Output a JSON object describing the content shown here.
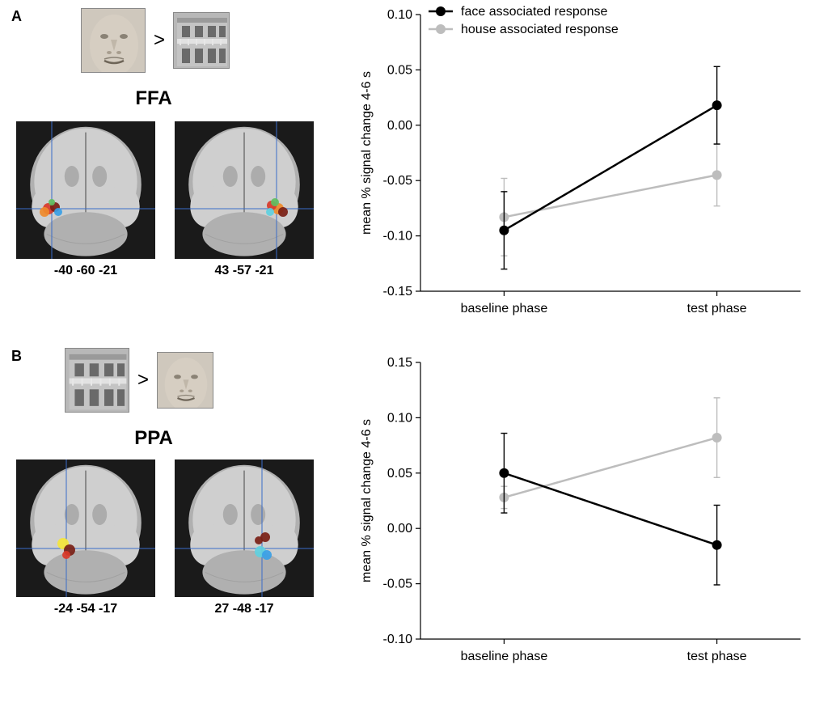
{
  "labels": {
    "panelA": "A",
    "panelB": "B",
    "ffa": "FFA",
    "ppa": "PPA",
    "gt": ">"
  },
  "coords": {
    "ffa_left": "-40 -60 -21",
    "ffa_right": "43 -57 -21",
    "ppa_left": "-24 -54 -17",
    "ppa_right": "27 -48 -17"
  },
  "legend": {
    "face": "face associated response",
    "house": "house associated response"
  },
  "axes": {
    "ylabel": "mean % signal change 4-6 s",
    "xcats": [
      "baseline phase",
      "test phase"
    ]
  },
  "colors": {
    "black": "#000000",
    "grey": "#bdbdbd",
    "axis": "#000000",
    "brain_bg": "#1a1a1a",
    "brain_tissue_light": "#cfcfcf",
    "brain_tissue_mid": "#b0b0b0",
    "brain_tissue_dark": "#8a8a8a",
    "roi_red": "#d93a2a",
    "roi_darkred": "#7a1f16",
    "roi_orange": "#ef8b2c",
    "roi_yellow": "#f5e63a",
    "roi_green": "#5fbf5f",
    "roi_blue": "#3aa0e6",
    "roi_cyan": "#5fd0e0",
    "crosshair": "#3a6cc9",
    "stim_face": "#cfc8bd",
    "stim_house": "#b8b8b8"
  },
  "chartA": {
    "ylim": [
      -0.15,
      0.1
    ],
    "yticks": [
      -0.15,
      -0.1,
      -0.05,
      0.0,
      0.05,
      0.1
    ],
    "series": {
      "face": {
        "baseline": -0.095,
        "test": 0.018,
        "err_baseline": 0.035,
        "err_test": 0.035
      },
      "house": {
        "baseline": -0.083,
        "test": -0.045,
        "err_baseline": 0.035,
        "err_test": 0.028
      }
    }
  },
  "chartB": {
    "ylim": [
      -0.1,
      0.15
    ],
    "yticks": [
      -0.1,
      -0.05,
      0.0,
      0.05,
      0.1,
      0.15
    ],
    "series": {
      "face": {
        "baseline": 0.05,
        "test": -0.015,
        "err_baseline": 0.036,
        "err_test": 0.036
      },
      "house": {
        "baseline": 0.028,
        "test": 0.082,
        "err_baseline": 0.01,
        "err_test": 0.036
      }
    }
  },
  "style": {
    "font_label": 16,
    "font_axis": 16,
    "marker_radius": 6,
    "line_width": 2.5,
    "err_cap": 8,
    "err_width": 1.4
  }
}
